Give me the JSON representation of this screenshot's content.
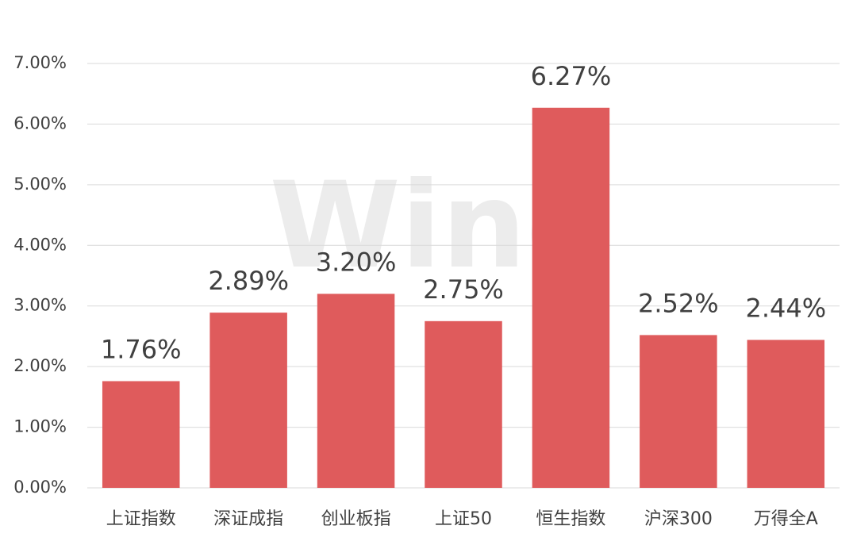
{
  "chart_data": {
    "type": "bar",
    "watermark": "Wind",
    "categories": [
      "上证指数",
      "深证成指",
      "创业板指",
      "上证50",
      "恒生指数",
      "沪深300",
      "万得全A"
    ],
    "values": [
      1.76,
      2.89,
      3.2,
      2.75,
      6.27,
      2.52,
      2.44
    ],
    "value_labels": [
      "1.76%",
      "2.89%",
      "3.20%",
      "2.75%",
      "6.27%",
      "2.52%",
      "2.44%"
    ],
    "color": "#df5b5c",
    "ylim": [
      0,
      7
    ],
    "yticks": [
      {
        "value": 0,
        "label": "0.00%"
      },
      {
        "value": 1,
        "label": "1.00%"
      },
      {
        "value": 2,
        "label": "2.00%"
      },
      {
        "value": 3,
        "label": "3.00%"
      },
      {
        "value": 4,
        "label": "4.00%"
      },
      {
        "value": 5,
        "label": "5.00%"
      },
      {
        "value": 6,
        "label": "6.00%"
      },
      {
        "value": 7,
        "label": "7.00%"
      }
    ],
    "grid": true
  }
}
